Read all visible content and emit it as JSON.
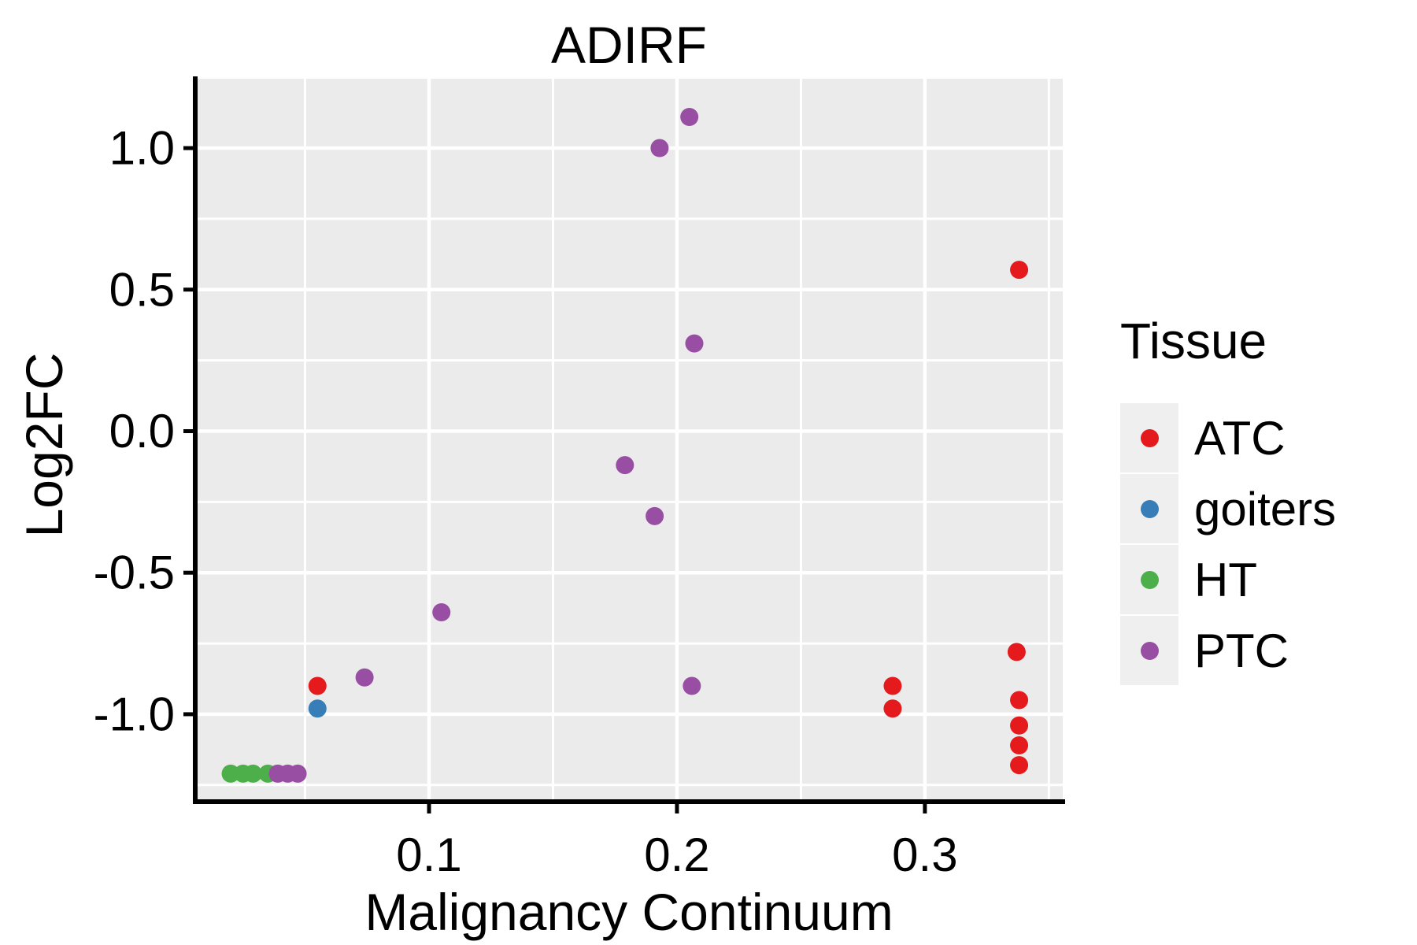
{
  "title": "ADIRF",
  "axes": {
    "x_label": "Malignancy Continuum",
    "y_label": "Log2FC"
  },
  "legend": {
    "title": "Tissue",
    "entries": [
      {
        "label": "ATC",
        "color": "#E41A1C"
      },
      {
        "label": "goiters",
        "color": "#377EB8"
      },
      {
        "label": "HT",
        "color": "#4DAF4A"
      },
      {
        "label": "PTC",
        "color": "#984EA3"
      }
    ]
  },
  "colors": {
    "panel_background": "#EBEBEB",
    "grid": "#FFFFFF",
    "axis": "#000000",
    "legend_key_background": "#EFEFEF",
    "text": "#000000"
  },
  "chart_data": {
    "type": "scatter",
    "title": "ADIRF",
    "xlabel": "Malignancy Continuum",
    "ylabel": "Log2FC",
    "xlim": [
      0.0057,
      0.3556
    ],
    "ylim": [
      -1.309,
      1.245
    ],
    "x_ticks": [
      0.1,
      0.2,
      0.3
    ],
    "x_tick_labels": [
      "0.1",
      "0.2",
      "0.3"
    ],
    "x_minor_ticks": [
      0.05,
      0.15,
      0.25,
      0.35
    ],
    "y_ticks": [
      1.0,
      0.5,
      0.0,
      -0.5,
      -1.0
    ],
    "y_tick_labels": [
      "1.0",
      "0.5",
      "0.0",
      "-0.5",
      "-1.0"
    ],
    "y_minor_ticks": [
      0.75,
      0.25,
      -0.25,
      -0.75,
      -1.25
    ],
    "grid": true,
    "legend_position": "right",
    "point_radius": 11.5,
    "series": [
      {
        "name": "ATC",
        "color": "#E41A1C",
        "points": [
          [
            0.055,
            -0.9
          ],
          [
            0.287,
            -0.9
          ],
          [
            0.287,
            -0.98
          ],
          [
            0.338,
            0.57
          ],
          [
            0.337,
            -0.78
          ],
          [
            0.338,
            -0.95
          ],
          [
            0.338,
            -1.04
          ],
          [
            0.338,
            -1.11
          ],
          [
            0.338,
            -1.18
          ]
        ]
      },
      {
        "name": "goiters",
        "color": "#377EB8",
        "points": [
          [
            0.055,
            -0.98
          ]
        ]
      },
      {
        "name": "HT",
        "color": "#4DAF4A",
        "points": [
          [
            0.02,
            -1.21
          ],
          [
            0.025,
            -1.21
          ],
          [
            0.029,
            -1.21
          ],
          [
            0.035,
            -1.21
          ]
        ]
      },
      {
        "name": "PTC",
        "color": "#984EA3",
        "points": [
          [
            0.039,
            -1.21
          ],
          [
            0.043,
            -1.21
          ],
          [
            0.047,
            -1.21
          ],
          [
            0.074,
            -0.87
          ],
          [
            0.105,
            -0.64
          ],
          [
            0.179,
            -0.12
          ],
          [
            0.191,
            -0.3
          ],
          [
            0.193,
            1.0
          ],
          [
            0.205,
            1.11
          ],
          [
            0.206,
            -0.9
          ],
          [
            0.207,
            0.31
          ]
        ]
      }
    ]
  }
}
